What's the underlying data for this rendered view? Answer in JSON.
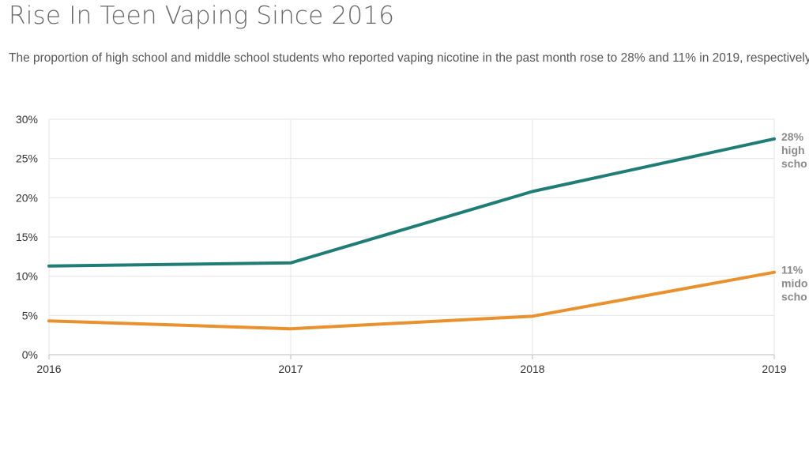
{
  "header": {
    "title": "Rise In Teen Vaping Since 2016",
    "subtitle": "The proportion of high school and middle school students who reported vaping nicotine in the past month rose to 28% and 11% in 2019, respectively."
  },
  "chart_data": {
    "type": "line",
    "title": "Rise In Teen Vaping Since 2016",
    "x": [
      "2016",
      "2017",
      "2018",
      "2019"
    ],
    "y_ticks": [
      "0%",
      "5%",
      "10%",
      "15%",
      "20%",
      "25%",
      "30%"
    ],
    "ylim": [
      0,
      30
    ],
    "xlabel": "",
    "ylabel": "",
    "grid": true,
    "series": [
      {
        "name": "high school",
        "end_label": [
          "28%",
          "high",
          "scho"
        ],
        "color": "#1f7d75",
        "values": [
          11.3,
          11.7,
          20.8,
          27.5
        ]
      },
      {
        "name": "middle school",
        "end_label": [
          "11%",
          "mido",
          "scho"
        ],
        "color": "#e8912e",
        "values": [
          4.3,
          3.3,
          4.9,
          10.5
        ]
      }
    ]
  }
}
